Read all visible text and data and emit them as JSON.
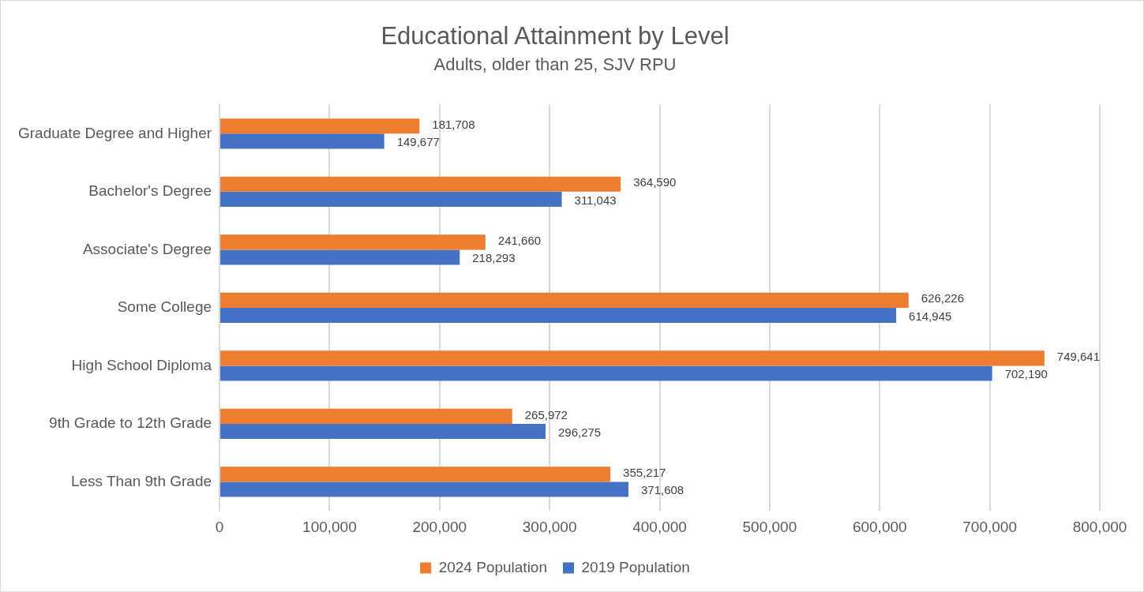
{
  "chart_data": {
    "type": "bar",
    "orientation": "horizontal",
    "title": "Educational Attainment by Level",
    "subtitle": "Adults, older than 25, SJV RPU",
    "categories": [
      "Graduate Degree and Higher",
      "Bachelor's Degree",
      "Associate's Degree",
      "Some College",
      "High School Diploma",
      "9th Grade to 12th Grade",
      "Less Than 9th Grade"
    ],
    "series": [
      {
        "name": "2024 Population",
        "color": "#ed7d31",
        "values": [
          181708,
          364590,
          241660,
          626226,
          749641,
          265972,
          355217
        ],
        "value_labels": [
          "181,708",
          "364,590",
          "241,660",
          "626,226",
          "749,641",
          "265,972",
          "355,217"
        ]
      },
      {
        "name": "2019 Population",
        "color": "#4472c4",
        "values": [
          149677,
          311043,
          218293,
          614945,
          702190,
          296275,
          371608
        ],
        "value_labels": [
          "149,677",
          "311,043",
          "218,293",
          "614,945",
          "702,190",
          "296,275",
          "371,608"
        ]
      }
    ],
    "xlim": [
      0,
      800000
    ],
    "xticks": [
      {
        "value": 0,
        "label": "0"
      },
      {
        "value": 100000,
        "label": "100,000"
      },
      {
        "value": 200000,
        "label": "200,000"
      },
      {
        "value": 300000,
        "label": "300,000"
      },
      {
        "value": 400000,
        "label": "400,000"
      },
      {
        "value": 500000,
        "label": "500,000"
      },
      {
        "value": 600000,
        "label": "600,000"
      },
      {
        "value": 700000,
        "label": "700,000"
      },
      {
        "value": 800000,
        "label": "800,000"
      }
    ],
    "grid": "x",
    "legend": "bottom"
  }
}
